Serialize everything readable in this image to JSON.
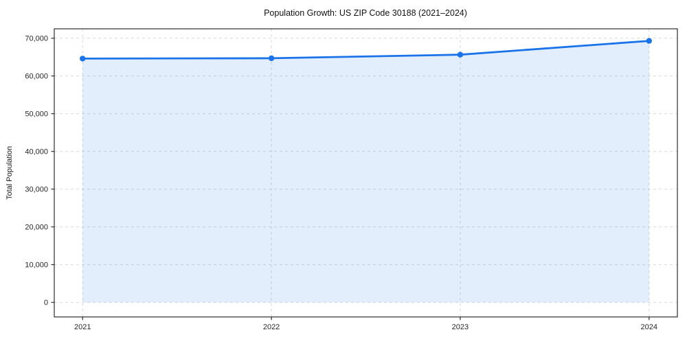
{
  "chart_data": {
    "type": "area",
    "title": "Population Growth: US ZIP Code 30188 (2021–2024)",
    "xlabel": "",
    "ylabel": "Total Population",
    "x": [
      2021,
      2022,
      2023,
      2024
    ],
    "x_tick_labels": [
      "2021",
      "2022",
      "2023",
      "2024"
    ],
    "y_tick_values": [
      0,
      10000,
      20000,
      30000,
      40000,
      50000,
      60000,
      70000
    ],
    "y_tick_labels": [
      "0",
      "10,000",
      "20,000",
      "30,000",
      "40,000",
      "50,000",
      "60,000",
      "70,000"
    ],
    "series": [
      {
        "name": "Total Population",
        "values": [
          64600,
          64700,
          65650,
          69300
        ],
        "fill_baseline": 0
      }
    ],
    "xlim": [
      2020.85,
      2024.15
    ],
    "ylim": [
      -3875,
      72500
    ],
    "grid": true,
    "grid_style": "dashed",
    "legend": "none",
    "colors": {
      "line": "#1a73e8",
      "marker": "#1a73e8",
      "fill": "rgba(26,115,232,0.12)",
      "grid": "#d8d8d8",
      "spine": "#2b2b2b",
      "tick_text": "#262626",
      "title_text": "#111111",
      "background": "#ffffff"
    }
  }
}
